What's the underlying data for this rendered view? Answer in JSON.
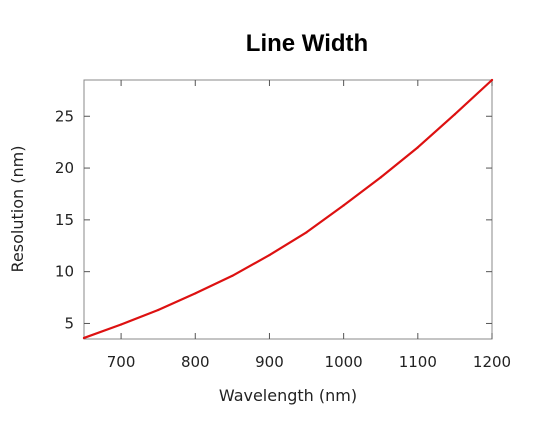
{
  "chart_data": {
    "type": "line",
    "title": "Line Width",
    "xlabel": "Wavelength (nm)",
    "ylabel": "Resolution (nm)",
    "xlim": [
      650,
      1200
    ],
    "ylim": [
      3.5,
      28.5
    ],
    "xticks": [
      700,
      800,
      900,
      1000,
      1100,
      1200
    ],
    "yticks": [
      5,
      10,
      15,
      20,
      25
    ],
    "grid": false,
    "series": [
      {
        "color": "#dd1111",
        "x": [
          650,
          700,
          750,
          800,
          850,
          900,
          950,
          1000,
          1050,
          1100,
          1150,
          1200
        ],
        "y": [
          3.6,
          4.9,
          6.3,
          7.9,
          9.6,
          11.6,
          13.8,
          16.4,
          19.1,
          22.0,
          25.2,
          28.5
        ]
      }
    ]
  }
}
